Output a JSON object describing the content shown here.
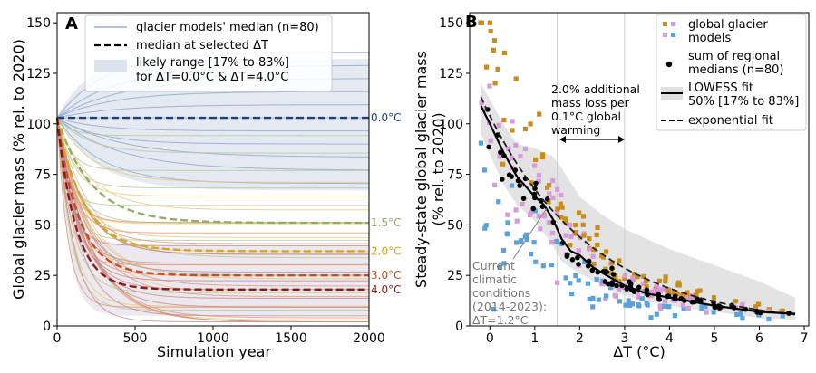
{
  "colors": {
    "warm_0": "#1f3f7a",
    "warm_15": "#8fae6a",
    "warm_20": "#d7a623",
    "warm_30": "#c0502a",
    "warm_40": "#8b1a1a",
    "band": "#b8c6dc",
    "pink": "#d99ad9",
    "blue": "#5aa3d9",
    "orange": "#c98d1a"
  },
  "chart_data": [
    {
      "panel": "A",
      "type": "line",
      "xlabel": "Simulation year",
      "ylabel": "Global glacier mass (% rel. to 2020)",
      "xlim": [
        0,
        2000
      ],
      "ylim": [
        0,
        155
      ],
      "xticks": [
        "0",
        "500",
        "1000",
        "1500",
        "2000"
      ],
      "yticks": [
        "0",
        "25",
        "50",
        "75",
        "100",
        "125",
        "150"
      ],
      "legend": {
        "model_lines": "glacier models' median (n=80)",
        "median": "median at selected ΔT",
        "range_line1": "likely range [17% to 83%]",
        "range_line2": "for ΔT=0.0°C & ΔT=4.0°C"
      },
      "start_value": 103,
      "series": [
        {
          "name": "0.0°C",
          "final": 103
        },
        {
          "name": "1.5°C",
          "final": 51
        },
        {
          "name": "2.0°C",
          "final": 37
        },
        {
          "name": "3.0°C",
          "final": 25
        },
        {
          "name": "4.0°C",
          "final": 18
        }
      ],
      "bands": [
        {
          "name": "ΔT=0.0°C",
          "low": 67,
          "high": 132
        },
        {
          "name": "ΔT=4.0°C",
          "low": 5,
          "high": 40
        }
      ]
    },
    {
      "panel": "B",
      "type": "scatter",
      "xlabel": "ΔT (°C)",
      "ylabel_line1": "Steady-state global glacier mass",
      "ylabel_line2": "(% rel. to 2020)",
      "xlim": [
        -0.45,
        7.1
      ],
      "ylim": [
        0,
        155
      ],
      "xticks": [
        "0",
        "1",
        "2",
        "3",
        "4",
        "5",
        "6",
        "7"
      ],
      "yticks": [
        "0",
        "25",
        "50",
        "75",
        "100",
        "125",
        "150"
      ],
      "annotation_lines": [
        "2.0% additional",
        "mass loss per",
        "0.1°C global",
        "warming"
      ],
      "arrow_x": [
        1.55,
        3.0
      ],
      "current_lines": [
        "Current",
        "climatic",
        "conditions",
        "(2014-2023):",
        "ΔT=1.2°C"
      ],
      "current_x": 1.2,
      "vlines_x": [
        1.5,
        3.0
      ],
      "legend": {
        "models_line1": "global glacier",
        "models_line2": "models",
        "regional_line1": "sum of regional",
        "regional_line2": "medians (n=80)",
        "lowess_line1": "LOWESS fit",
        "lowess_line2": "50% [17% to 83%]",
        "exp": "exponential fit"
      },
      "lowess": {
        "x": [
          -0.2,
          0.0,
          0.3,
          0.6,
          1.0,
          1.2,
          1.4,
          1.6,
          1.8,
          2.0,
          2.3,
          2.6,
          3.0,
          3.5,
          4.0,
          5.0,
          6.0,
          6.8
        ],
        "y": [
          109,
          100,
          86,
          74,
          64,
          60,
          53,
          43,
          37,
          35,
          29,
          25,
          20,
          16,
          14,
          10,
          7,
          6
        ]
      },
      "lowess_band": {
        "x": [
          -0.2,
          0.0,
          0.3,
          0.6,
          1.0,
          1.4,
          1.6,
          2.0,
          2.5,
          3.0,
          3.5,
          4.0,
          5.0,
          6.0,
          6.8
        ],
        "low": [
          95,
          85,
          70,
          60,
          52,
          40,
          32,
          26,
          20,
          15,
          12,
          10,
          7,
          4,
          3
        ],
        "high": [
          120,
          112,
          100,
          90,
          88,
          84,
          78,
          64,
          55,
          48,
          43,
          38,
          30,
          22,
          14
        ]
      },
      "exp_fit": {
        "a": 104,
        "b": -0.43
      },
      "scatter_seed": 7
    }
  ]
}
